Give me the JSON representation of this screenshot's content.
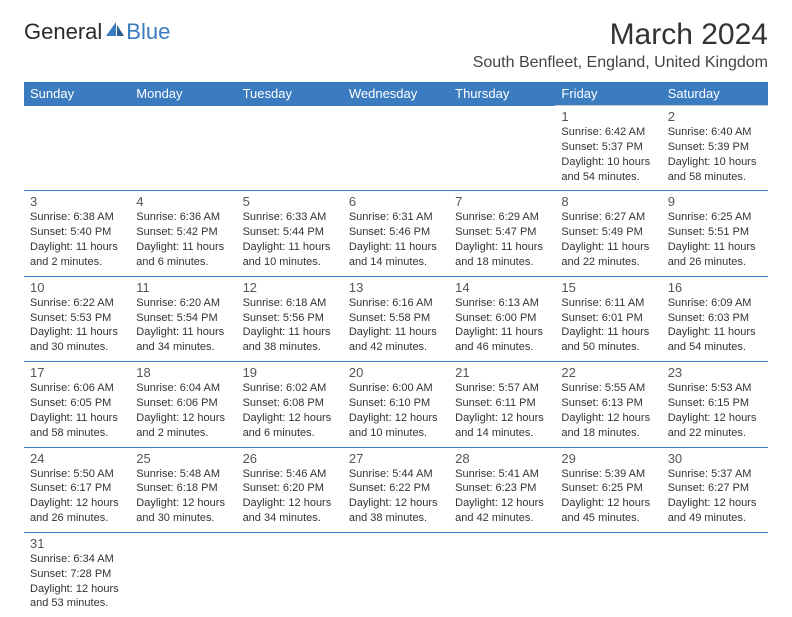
{
  "logo": {
    "text_a": "General",
    "text_b": "Blue"
  },
  "title": "March 2024",
  "location": "South Benfleet, England, United Kingdom",
  "colors": {
    "header_bg": "#3b7bbf",
    "header_text": "#ffffff",
    "body_text": "#333333",
    "row_border": "#3b7bbf",
    "sep_border": "#cccccc"
  },
  "weekdays": [
    "Sunday",
    "Monday",
    "Tuesday",
    "Wednesday",
    "Thursday",
    "Friday",
    "Saturday"
  ],
  "days": {
    "1": {
      "sunrise": "Sunrise: 6:42 AM",
      "sunset": "Sunset: 5:37 PM",
      "day_a": "Daylight: 10 hours",
      "day_b": "and 54 minutes."
    },
    "2": {
      "sunrise": "Sunrise: 6:40 AM",
      "sunset": "Sunset: 5:39 PM",
      "day_a": "Daylight: 10 hours",
      "day_b": "and 58 minutes."
    },
    "3": {
      "sunrise": "Sunrise: 6:38 AM",
      "sunset": "Sunset: 5:40 PM",
      "day_a": "Daylight: 11 hours",
      "day_b": "and 2 minutes."
    },
    "4": {
      "sunrise": "Sunrise: 6:36 AM",
      "sunset": "Sunset: 5:42 PM",
      "day_a": "Daylight: 11 hours",
      "day_b": "and 6 minutes."
    },
    "5": {
      "sunrise": "Sunrise: 6:33 AM",
      "sunset": "Sunset: 5:44 PM",
      "day_a": "Daylight: 11 hours",
      "day_b": "and 10 minutes."
    },
    "6": {
      "sunrise": "Sunrise: 6:31 AM",
      "sunset": "Sunset: 5:46 PM",
      "day_a": "Daylight: 11 hours",
      "day_b": "and 14 minutes."
    },
    "7": {
      "sunrise": "Sunrise: 6:29 AM",
      "sunset": "Sunset: 5:47 PM",
      "day_a": "Daylight: 11 hours",
      "day_b": "and 18 minutes."
    },
    "8": {
      "sunrise": "Sunrise: 6:27 AM",
      "sunset": "Sunset: 5:49 PM",
      "day_a": "Daylight: 11 hours",
      "day_b": "and 22 minutes."
    },
    "9": {
      "sunrise": "Sunrise: 6:25 AM",
      "sunset": "Sunset: 5:51 PM",
      "day_a": "Daylight: 11 hours",
      "day_b": "and 26 minutes."
    },
    "10": {
      "sunrise": "Sunrise: 6:22 AM",
      "sunset": "Sunset: 5:53 PM",
      "day_a": "Daylight: 11 hours",
      "day_b": "and 30 minutes."
    },
    "11": {
      "sunrise": "Sunrise: 6:20 AM",
      "sunset": "Sunset: 5:54 PM",
      "day_a": "Daylight: 11 hours",
      "day_b": "and 34 minutes."
    },
    "12": {
      "sunrise": "Sunrise: 6:18 AM",
      "sunset": "Sunset: 5:56 PM",
      "day_a": "Daylight: 11 hours",
      "day_b": "and 38 minutes."
    },
    "13": {
      "sunrise": "Sunrise: 6:16 AM",
      "sunset": "Sunset: 5:58 PM",
      "day_a": "Daylight: 11 hours",
      "day_b": "and 42 minutes."
    },
    "14": {
      "sunrise": "Sunrise: 6:13 AM",
      "sunset": "Sunset: 6:00 PM",
      "day_a": "Daylight: 11 hours",
      "day_b": "and 46 minutes."
    },
    "15": {
      "sunrise": "Sunrise: 6:11 AM",
      "sunset": "Sunset: 6:01 PM",
      "day_a": "Daylight: 11 hours",
      "day_b": "and 50 minutes."
    },
    "16": {
      "sunrise": "Sunrise: 6:09 AM",
      "sunset": "Sunset: 6:03 PM",
      "day_a": "Daylight: 11 hours",
      "day_b": "and 54 minutes."
    },
    "17": {
      "sunrise": "Sunrise: 6:06 AM",
      "sunset": "Sunset: 6:05 PM",
      "day_a": "Daylight: 11 hours",
      "day_b": "and 58 minutes."
    },
    "18": {
      "sunrise": "Sunrise: 6:04 AM",
      "sunset": "Sunset: 6:06 PM",
      "day_a": "Daylight: 12 hours",
      "day_b": "and 2 minutes."
    },
    "19": {
      "sunrise": "Sunrise: 6:02 AM",
      "sunset": "Sunset: 6:08 PM",
      "day_a": "Daylight: 12 hours",
      "day_b": "and 6 minutes."
    },
    "20": {
      "sunrise": "Sunrise: 6:00 AM",
      "sunset": "Sunset: 6:10 PM",
      "day_a": "Daylight: 12 hours",
      "day_b": "and 10 minutes."
    },
    "21": {
      "sunrise": "Sunrise: 5:57 AM",
      "sunset": "Sunset: 6:11 PM",
      "day_a": "Daylight: 12 hours",
      "day_b": "and 14 minutes."
    },
    "22": {
      "sunrise": "Sunrise: 5:55 AM",
      "sunset": "Sunset: 6:13 PM",
      "day_a": "Daylight: 12 hours",
      "day_b": "and 18 minutes."
    },
    "23": {
      "sunrise": "Sunrise: 5:53 AM",
      "sunset": "Sunset: 6:15 PM",
      "day_a": "Daylight: 12 hours",
      "day_b": "and 22 minutes."
    },
    "24": {
      "sunrise": "Sunrise: 5:50 AM",
      "sunset": "Sunset: 6:17 PM",
      "day_a": "Daylight: 12 hours",
      "day_b": "and 26 minutes."
    },
    "25": {
      "sunrise": "Sunrise: 5:48 AM",
      "sunset": "Sunset: 6:18 PM",
      "day_a": "Daylight: 12 hours",
      "day_b": "and 30 minutes."
    },
    "26": {
      "sunrise": "Sunrise: 5:46 AM",
      "sunset": "Sunset: 6:20 PM",
      "day_a": "Daylight: 12 hours",
      "day_b": "and 34 minutes."
    },
    "27": {
      "sunrise": "Sunrise: 5:44 AM",
      "sunset": "Sunset: 6:22 PM",
      "day_a": "Daylight: 12 hours",
      "day_b": "and 38 minutes."
    },
    "28": {
      "sunrise": "Sunrise: 5:41 AM",
      "sunset": "Sunset: 6:23 PM",
      "day_a": "Daylight: 12 hours",
      "day_b": "and 42 minutes."
    },
    "29": {
      "sunrise": "Sunrise: 5:39 AM",
      "sunset": "Sunset: 6:25 PM",
      "day_a": "Daylight: 12 hours",
      "day_b": "and 45 minutes."
    },
    "30": {
      "sunrise": "Sunrise: 5:37 AM",
      "sunset": "Sunset: 6:27 PM",
      "day_a": "Daylight: 12 hours",
      "day_b": "and 49 minutes."
    },
    "31": {
      "sunrise": "Sunrise: 6:34 AM",
      "sunset": "Sunset: 7:28 PM",
      "day_a": "Daylight: 12 hours",
      "day_b": "and 53 minutes."
    }
  }
}
